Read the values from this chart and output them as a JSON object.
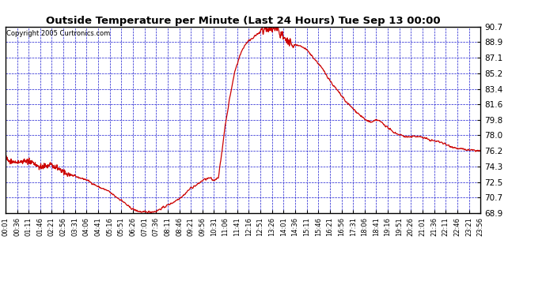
{
  "title": "Outside Temperature per Minute (Last 24 Hours) Tue Sep 13 00:00",
  "copyright": "Copyright 2005 Curtronics.com",
  "background_color": "#ffffff",
  "plot_bg_color": "#ffffff",
  "grid_color": "#0000cc",
  "line_color": "#cc0000",
  "yticks": [
    68.9,
    70.7,
    72.5,
    74.3,
    76.2,
    78.0,
    79.8,
    81.6,
    83.4,
    85.2,
    87.1,
    88.9,
    90.7
  ],
  "ymin": 68.9,
  "ymax": 90.7,
  "xtick_labels": [
    "00:01",
    "00:36",
    "01:11",
    "01:46",
    "02:21",
    "02:56",
    "03:31",
    "04:06",
    "04:41",
    "05:16",
    "05:51",
    "06:26",
    "07:01",
    "07:36",
    "08:11",
    "08:46",
    "09:21",
    "09:56",
    "10:31",
    "11:06",
    "11:41",
    "12:16",
    "12:51",
    "13:26",
    "14:01",
    "14:36",
    "15:11",
    "15:46",
    "16:21",
    "16:56",
    "17:31",
    "18:06",
    "18:41",
    "19:16",
    "19:51",
    "20:26",
    "21:01",
    "21:36",
    "22:11",
    "22:46",
    "23:21",
    "23:56"
  ]
}
